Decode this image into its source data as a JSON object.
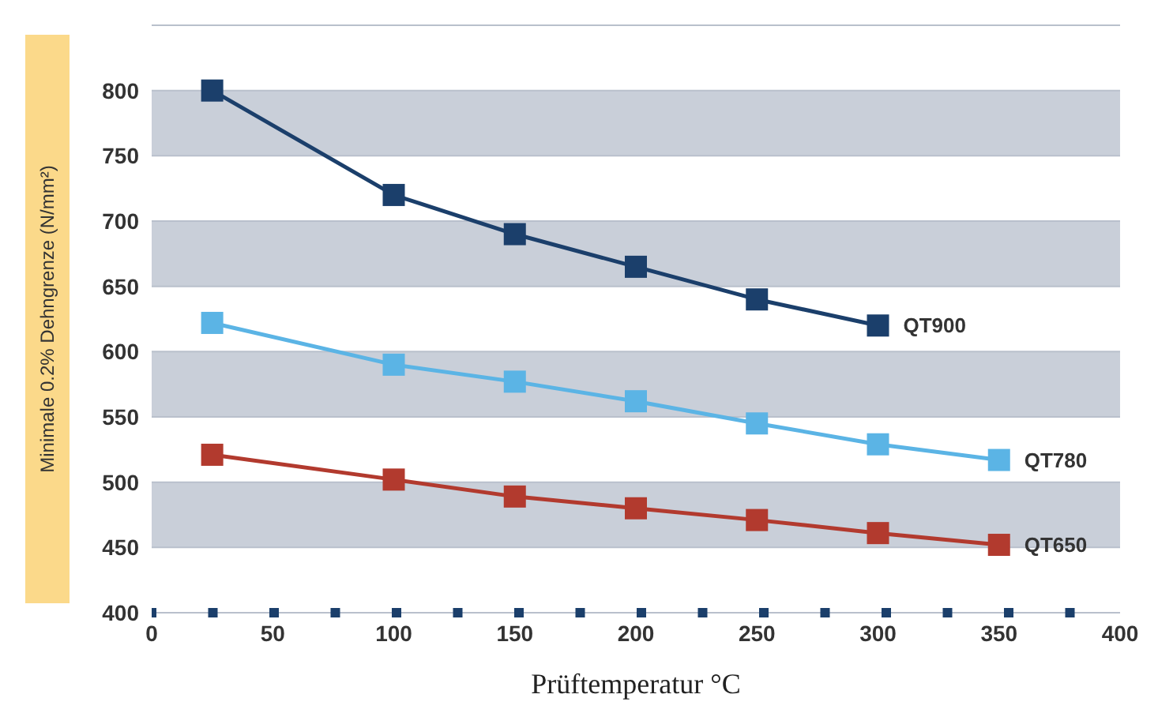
{
  "chart_data": {
    "type": "line",
    "xlabel": "Prüftemperatur °C",
    "ylabel": "Minimale 0.2% Dehngrenze (N/mm²)",
    "xlim": [
      0,
      400
    ],
    "xticks": [
      0,
      50,
      100,
      150,
      200,
      250,
      300,
      350,
      400
    ],
    "ylim": [
      400,
      850
    ],
    "yticks": [
      400,
      450,
      500,
      550,
      600,
      650,
      700,
      750,
      800,
      {
        "value": 850,
        "label": null
      }
    ],
    "grid": "y",
    "legend": false,
    "marker": "square",
    "line_style": "solid",
    "series": [
      {
        "name": "QT900",
        "color": "#1b3f6b",
        "x": [
          25,
          100,
          150,
          200,
          250,
          300
        ],
        "values": [
          800,
          720,
          690,
          665,
          640,
          620
        ]
      },
      {
        "name": "QT780",
        "color": "#5bb4e5",
        "x": [
          25,
          100,
          150,
          200,
          250,
          300,
          350
        ],
        "values": [
          622,
          590,
          577,
          562,
          545,
          529,
          517
        ]
      },
      {
        "name": "QT650",
        "color": "#b23a2e",
        "x": [
          25,
          100,
          150,
          200,
          250,
          300,
          350
        ],
        "values": [
          521,
          502,
          489,
          480,
          471,
          461,
          452
        ]
      }
    ]
  }
}
